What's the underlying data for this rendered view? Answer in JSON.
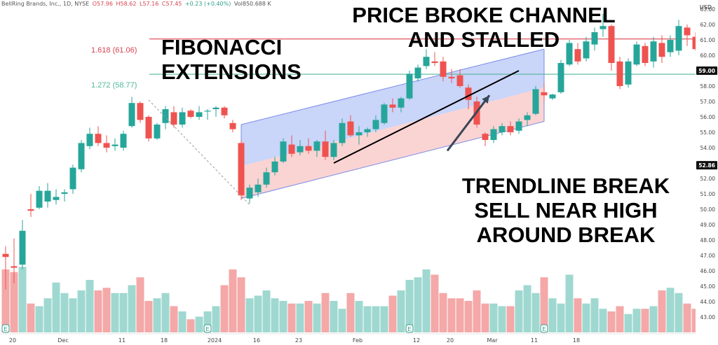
{
  "header": {
    "symbol_line": "BellRing Brands, Inc., 1D, NYSE",
    "open": "O57.96",
    "high": "H58.62",
    "low": "L57.16",
    "close": "C57.45",
    "change": "+0.23 (+0.40%)",
    "volume": "Vol850.688 K"
  },
  "currency": "USD",
  "annotations": {
    "fibonacci_line1": "FIBONACCI",
    "fibonacci_line2": "EXTENSIONS",
    "channel_line1": "PRICE BROKE CHANNEL",
    "channel_line2": "AND STALLED",
    "trend_line1": "TRENDLINE BREAK",
    "trend_line2": "SELL NEAR HIGH",
    "trend_line3": "AROUND BREAK"
  },
  "colors": {
    "up": "#26a69a",
    "down": "#ef5350",
    "vol_up": "#9fd8d0",
    "vol_down": "#f4a8a8",
    "fib_1618": "#d9434f",
    "fib_1272": "#52b89a",
    "channel_upper_fill": "#b7c7f7",
    "channel_lower_fill": "#f8c4c4",
    "channel_line": "#7b8ce6",
    "axis_text": "#444444"
  },
  "chart_data": {
    "type": "candlestick",
    "title": "BellRing Brands, Inc., 1D, NYSE",
    "ylim": [
      43,
      63.5
    ],
    "y_ticks": [
      43,
      44,
      45,
      46,
      47,
      48,
      49,
      50,
      51,
      52,
      53,
      54,
      55,
      56,
      57,
      58,
      59,
      60,
      61,
      62,
      63
    ],
    "x_tick_labels": [
      {
        "bar": 0,
        "label": "20"
      },
      {
        "bar": 6,
        "label": "Dec"
      },
      {
        "bar": 13,
        "label": "11"
      },
      {
        "bar": 18,
        "label": "18"
      },
      {
        "bar": 24,
        "label": "2024"
      },
      {
        "bar": 29,
        "label": "16"
      },
      {
        "bar": 34,
        "label": "23"
      },
      {
        "bar": 41,
        "label": "Feb"
      },
      {
        "bar": 48,
        "label": "12"
      },
      {
        "bar": 52,
        "label": "20"
      },
      {
        "bar": 57,
        "label": "Mar"
      },
      {
        "bar": 62,
        "label": "11"
      },
      {
        "bar": 67,
        "label": "18"
      }
    ],
    "candles": [
      [
        47.1,
        47.6,
        44.8,
        46.9
      ],
      [
        46.3,
        48.1,
        45.2,
        46.2
      ],
      [
        46.4,
        49.3,
        46.1,
        48.6
      ],
      [
        50.0,
        51.0,
        49.5,
        49.9
      ],
      [
        50.1,
        51.5,
        50.0,
        51.2
      ],
      [
        50.5,
        51.7,
        50.1,
        51.2
      ],
      [
        50.6,
        51.3,
        50.3,
        50.8
      ],
      [
        51.0,
        51.3,
        50.5,
        51.1
      ],
      [
        51.3,
        52.9,
        51.0,
        52.7
      ],
      [
        52.6,
        54.5,
        52.4,
        54.3
      ],
      [
        54.1,
        55.3,
        53.9,
        54.9
      ],
      [
        54.9,
        55.4,
        54.1,
        54.3
      ],
      [
        54.3,
        54.8,
        53.7,
        54.0
      ],
      [
        54.1,
        54.6,
        53.8,
        54.2
      ],
      [
        54.0,
        55.1,
        53.8,
        54.9
      ],
      [
        55.4,
        57.3,
        55.3,
        56.9
      ],
      [
        56.9,
        57.0,
        55.6,
        55.8
      ],
      [
        56.0,
        56.1,
        54.4,
        54.6
      ],
      [
        54.6,
        55.6,
        54.5,
        55.5
      ],
      [
        55.6,
        56.7,
        55.2,
        56.5
      ],
      [
        56.3,
        56.7,
        55.3,
        55.5
      ],
      [
        55.5,
        56.6,
        55.3,
        56.3
      ],
      [
        56.4,
        56.5,
        55.9,
        56.0
      ],
      [
        56.0,
        56.7,
        55.8,
        56.3
      ],
      [
        56.4,
        56.5,
        55.8,
        56.4
      ],
      [
        56.5,
        56.7,
        56.0,
        56.6
      ],
      [
        56.6,
        56.7,
        55.9,
        56.1
      ],
      [
        55.6,
        55.8,
        55.0,
        55.2
      ],
      [
        54.3,
        54.5,
        50.6,
        50.9
      ],
      [
        50.7,
        51.6,
        50.4,
        51.4
      ],
      [
        51.1,
        52.0,
        50.8,
        51.6
      ],
      [
        51.6,
        52.7,
        51.4,
        52.4
      ],
      [
        52.4,
        53.4,
        52.2,
        53.1
      ],
      [
        53.1,
        54.6,
        53.0,
        54.4
      ],
      [
        54.2,
        54.8,
        53.4,
        53.6
      ],
      [
        53.7,
        54.5,
        53.5,
        54.1
      ],
      [
        54.1,
        54.6,
        53.6,
        53.8
      ],
      [
        53.8,
        54.5,
        53.4,
        54.4
      ],
      [
        54.4,
        55.1,
        53.2,
        53.4
      ],
      [
        53.4,
        54.5,
        53.2,
        54.3
      ],
      [
        54.3,
        55.9,
        54.1,
        55.6
      ],
      [
        55.7,
        56.1,
        54.7,
        54.8
      ],
      [
        54.8,
        55.4,
        54.2,
        55.0
      ],
      [
        55.0,
        55.3,
        54.7,
        55.2
      ],
      [
        55.2,
        56.1,
        55.0,
        55.8
      ],
      [
        55.6,
        56.9,
        55.5,
        56.8
      ],
      [
        56.8,
        57.2,
        56.3,
        56.6
      ],
      [
        56.6,
        57.3,
        56.3,
        57.2
      ],
      [
        57.2,
        59.0,
        57.1,
        58.8
      ],
      [
        58.5,
        59.4,
        58.3,
        59.2
      ],
      [
        59.3,
        60.4,
        59.1,
        59.9
      ],
      [
        59.6,
        60.2,
        59.3,
        59.5
      ],
      [
        59.6,
        59.9,
        58.3,
        58.6
      ],
      [
        58.6,
        59.1,
        58.2,
        58.5
      ],
      [
        58.7,
        59.1,
        57.9,
        58.0
      ],
      [
        57.9,
        58.1,
        56.5,
        57.1
      ],
      [
        57.0,
        57.3,
        55.3,
        55.5
      ],
      [
        54.9,
        55.0,
        54.1,
        54.5
      ],
      [
        54.5,
        55.4,
        54.3,
        55.2
      ],
      [
        55.0,
        55.6,
        54.8,
        55.4
      ],
      [
        55.4,
        55.7,
        54.8,
        55.0
      ],
      [
        55.1,
        55.9,
        54.9,
        55.7
      ],
      [
        55.8,
        56.3,
        55.4,
        56.1
      ],
      [
        56.2,
        58.0,
        56.1,
        57.8
      ],
      [
        57.6,
        58.2,
        57.0,
        57.4
      ],
      [
        57.2,
        57.5,
        57.1,
        57.45
      ],
      [
        57.6,
        59.7,
        57.5,
        59.5
      ],
      [
        59.4,
        61.0,
        59.3,
        60.8
      ],
      [
        60.4,
        60.8,
        59.4,
        59.6
      ],
      [
        59.8,
        61.2,
        59.6,
        60.9
      ],
      [
        60.7,
        61.8,
        60.3,
        61.5
      ],
      [
        61.7,
        62.7,
        61.2,
        61.9
      ],
      [
        61.9,
        62.0,
        59.0,
        59.5
      ],
      [
        59.6,
        59.9,
        57.8,
        58.0
      ],
      [
        58.1,
        59.8,
        57.9,
        59.6
      ],
      [
        59.4,
        60.9,
        59.3,
        60.7
      ],
      [
        60.6,
        60.8,
        59.3,
        59.5
      ],
      [
        59.6,
        61.2,
        59.2,
        60.9
      ],
      [
        60.8,
        61.3,
        59.5,
        59.9
      ],
      [
        60.2,
        61.3,
        59.9,
        61.0
      ],
      [
        60.3,
        62.3,
        60.0,
        61.9
      ],
      [
        61.8,
        62.0,
        60.6,
        61.3
      ],
      [
        61.2,
        61.5,
        60.3,
        60.4
      ]
    ],
    "volume": [
      2.4,
      2.3,
      2.5,
      1.1,
      1.0,
      1.3,
      1.9,
      1.5,
      1.3,
      1.6,
      2.0,
      1.6,
      1.7,
      1.5,
      1.5,
      1.8,
      2.1,
      1.2,
      1.3,
      1.5,
      1.0,
      0.8,
      0.5,
      0.6,
      0.8,
      1.0,
      1.8,
      2.4,
      2.1,
      1.3,
      1.4,
      1.6,
      1.3,
      1.2,
      1.1,
      1.1,
      1.2,
      1.1,
      1.5,
      1.2,
      0.9,
      1.5,
      1.2,
      1.0,
      1.0,
      1.0,
      1.4,
      1.6,
      2.0,
      2.1,
      2.4,
      2.2,
      1.5,
      1.3,
      1.3,
      1.2,
      1.6,
      1.1,
      1.1,
      1.0,
      1.0,
      1.6,
      1.8,
      1.5,
      2.1,
      1.3,
      1.1,
      2.2,
      1.3,
      1.1,
      1.3,
      0.9,
      0.8,
      1.0,
      0.7,
      0.9,
      0.9,
      1.0,
      1.6,
      1.7,
      1.5,
      1.1,
      0.9
    ],
    "volume_max": 3.2,
    "fib_levels": [
      {
        "label": "1.618 (61.06)",
        "value": 61.06
      },
      {
        "label": "1.272 (58.77)",
        "value": 58.77
      }
    ],
    "price_badges": [
      {
        "value": 59.0,
        "label": "59.00"
      },
      {
        "value": 52.86,
        "label": "52.86"
      }
    ],
    "channel": {
      "start_bar": 28,
      "end_bar": 64,
      "upper_start": 55.5,
      "upper_end": 60.4,
      "mid_start": 52.8,
      "mid_end": 57.9,
      "lower_start": 50.7,
      "lower_end": 55.7
    },
    "trendline": {
      "start_bar": 39,
      "start_value": 53.0,
      "end_bar": 61,
      "end_value": 59.0
    },
    "dashed_line": {
      "start_bar": 17,
      "start_value": 57.1,
      "end_bar": 29,
      "end_value": 50.3
    },
    "arrow": {
      "from_bar": 52.5,
      "from_value": 53.8,
      "to_bar": 57.5,
      "to_value": 57.4
    },
    "event_markers": [
      0,
      24,
      48,
      64
    ]
  }
}
